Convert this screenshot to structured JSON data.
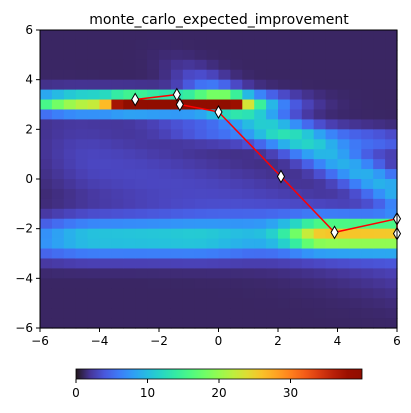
{
  "chart_data": {
    "type": "heatmap",
    "title": "monte_carlo_expected_improvement",
    "xlabel": "",
    "ylabel": "",
    "xlim": [
      -6,
      6
    ],
    "ylim": [
      -6,
      6
    ],
    "xticks": [
      -6,
      -4,
      -2,
      0,
      2,
      4,
      6
    ],
    "yticks": [
      -6,
      -4,
      -2,
      0,
      2,
      4,
      6
    ],
    "grid": false,
    "colormap": "turbo",
    "colorbar": {
      "orientation": "horizontal",
      "placement": "bottom",
      "range": [
        0,
        40
      ],
      "ticks": [
        0,
        10,
        20,
        30
      ]
    },
    "grid_resolution": 30,
    "heatmap_background": 1,
    "heatmap_components": [
      {
        "x0": -4.3,
        "x1": -0.2,
        "y0": 3.05,
        "sx": 1.5,
        "sy": 0.28,
        "slope": 0.0,
        "amp": 16
      },
      {
        "x0": -3.0,
        "x1": 0.2,
        "y0": 3.05,
        "sx": 0.45,
        "sy": 0.18,
        "slope": 0.0,
        "amp": 24
      },
      {
        "x0": -1.8,
        "x1": -0.8,
        "y0": 3.0,
        "sx": 0.35,
        "sy": 0.14,
        "slope": 0.0,
        "amp": 14
      },
      {
        "x0": 0.5,
        "x1": 6.0,
        "y0": 2.9,
        "sx": 1.0,
        "sy": 0.55,
        "slope": -0.62,
        "amp": 8
      },
      {
        "x0": 0.0,
        "x1": 5.0,
        "y0": 1.95,
        "sx": 1.4,
        "sy": 0.35,
        "slope": -0.08,
        "amp": 4
      },
      {
        "x0": 3.6,
        "x1": 6.0,
        "y0": -2.25,
        "sx": 0.9,
        "sy": 0.4,
        "slope": 0.0,
        "amp": 17
      },
      {
        "x0": -4.0,
        "x1": 6.0,
        "y0": -2.3,
        "sx": 1.5,
        "sy": 0.55,
        "slope": 0.0,
        "amp": 6
      },
      {
        "x0": -6.0,
        "x1": -1.0,
        "y0": -2.5,
        "sx": 1.5,
        "sy": 0.5,
        "slope": 0.0,
        "amp": 4
      },
      {
        "x0": -6.0,
        "x1": -3.0,
        "y0": 3.1,
        "sx": 0.8,
        "sy": 0.3,
        "slope": 0.0,
        "amp": 5
      },
      {
        "x0": -4.0,
        "x1": 6.0,
        "y0": 0.6,
        "sx": 1.5,
        "sy": 1.2,
        "slope": -0.35,
        "amp": 2
      }
    ],
    "path": {
      "color": "#ff0000",
      "marker": "diamond",
      "x": [
        -2.8,
        -1.4,
        -1.3,
        0.0,
        2.1,
        3.9,
        6.0,
        6.0
      ],
      "y": [
        3.2,
        3.4,
        3.0,
        2.7,
        0.1,
        -2.15,
        -1.6,
        -2.2
      ]
    }
  }
}
